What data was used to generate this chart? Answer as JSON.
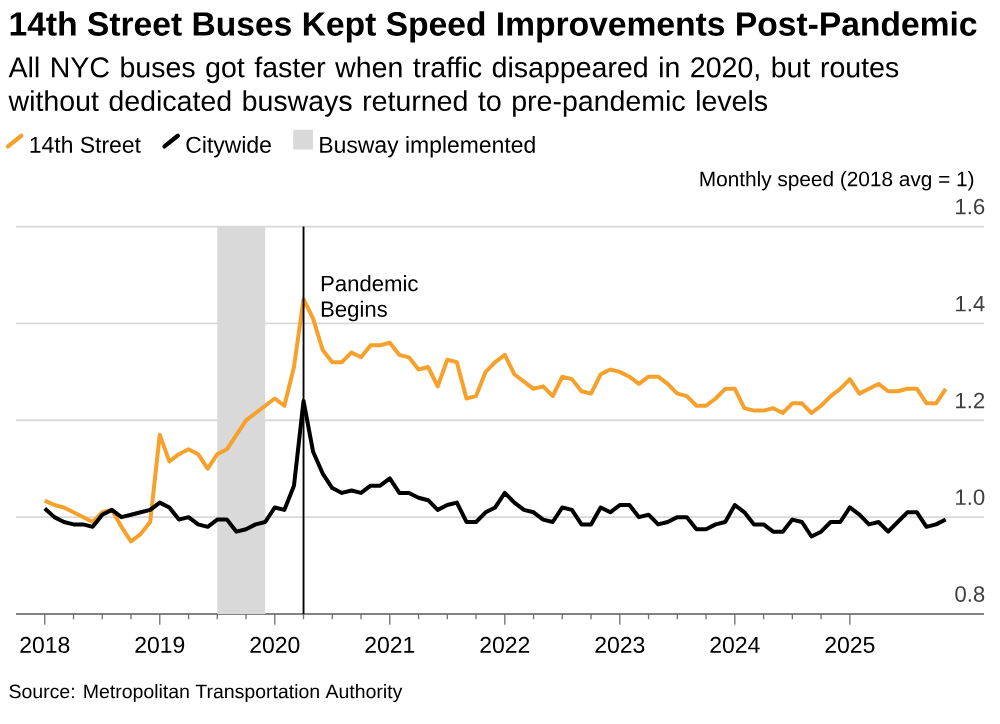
{
  "chart_data": {
    "type": "line",
    "title": "14th Street Buses Kept Speed Improvements Post-Pandemic",
    "subtitle": "All NYC buses got faster when traffic disappeared in 2020, but routes without dedicated busways returned to pre-pandemic levels",
    "ylabel": "Monthly speed (2018 avg = 1)",
    "annotations": [
      "Source: Metropolitan Transportation Authority"
    ],
    "x": [
      "2018-01",
      "2018-02",
      "2018-03",
      "2018-04",
      "2018-05",
      "2018-06",
      "2018-07",
      "2018-08",
      "2018-09",
      "2018-10",
      "2018-11",
      "2018-12",
      "2019-01",
      "2019-02",
      "2019-03",
      "2019-04",
      "2019-05",
      "2019-06",
      "2019-07",
      "2019-08",
      "2019-09",
      "2019-10",
      "2019-11",
      "2019-12",
      "2020-01",
      "2020-02",
      "2020-03",
      "2020-04",
      "2020-05",
      "2020-06",
      "2020-07",
      "2020-08",
      "2020-09",
      "2020-10",
      "2020-11",
      "2020-12",
      "2021-01",
      "2021-02",
      "2021-03",
      "2021-04",
      "2021-05",
      "2021-06",
      "2021-07",
      "2021-08",
      "2021-09",
      "2021-10",
      "2021-11",
      "2021-12",
      "2022-01",
      "2022-02",
      "2022-03",
      "2022-04",
      "2022-05",
      "2022-06",
      "2022-07",
      "2022-08",
      "2022-09",
      "2022-10",
      "2022-11",
      "2022-12",
      "2023-01",
      "2023-02",
      "2023-03",
      "2023-04",
      "2023-05",
      "2023-06",
      "2023-07",
      "2023-08",
      "2023-09",
      "2023-10",
      "2023-11",
      "2023-12",
      "2024-01",
      "2024-02",
      "2024-03",
      "2024-04",
      "2024-05",
      "2024-06",
      "2024-07",
      "2024-08",
      "2024-09",
      "2024-10",
      "2024-11",
      "2024-12",
      "2025-01",
      "2025-02",
      "2025-03",
      "2025-04",
      "2025-05",
      "2025-06",
      "2025-07",
      "2025-08",
      "2025-09",
      "2025-10",
      "2025-11"
    ],
    "series": [
      {
        "name": "14th Street",
        "color": "#f5a12c",
        "values": [
          1.034,
          1.025,
          1.02,
          1.01,
          1.0,
          0.99,
          1.01,
          1.015,
          0.98,
          0.95,
          0.965,
          0.99,
          1.17,
          1.115,
          1.13,
          1.14,
          1.13,
          1.1,
          1.13,
          1.14,
          1.17,
          1.2,
          1.215,
          1.23,
          1.245,
          1.23,
          1.31,
          1.45,
          1.41,
          1.345,
          1.32,
          1.32,
          1.34,
          1.33,
          1.355,
          1.355,
          1.36,
          1.335,
          1.33,
          1.305,
          1.31,
          1.27,
          1.325,
          1.32,
          1.245,
          1.25,
          1.3,
          1.32,
          1.335,
          1.295,
          1.28,
          1.265,
          1.27,
          1.25,
          1.29,
          1.285,
          1.26,
          1.255,
          1.295,
          1.305,
          1.3,
          1.29,
          1.275,
          1.29,
          1.29,
          1.275,
          1.255,
          1.25,
          1.23,
          1.23,
          1.245,
          1.265,
          1.265,
          1.225,
          1.22,
          1.22,
          1.225,
          1.215,
          1.235,
          1.235,
          1.215,
          1.23,
          1.25,
          1.265,
          1.285,
          1.255,
          1.265,
          1.275,
          1.26,
          1.26,
          1.265,
          1.265,
          1.235,
          1.235,
          1.265
        ]
      },
      {
        "name": "Citywide",
        "color": "#000000",
        "values": [
          1.018,
          1.0,
          0.99,
          0.985,
          0.985,
          0.98,
          1.005,
          1.015,
          1.0,
          1.005,
          1.01,
          1.015,
          1.03,
          1.02,
          0.995,
          1.0,
          0.985,
          0.98,
          0.995,
          0.995,
          0.97,
          0.975,
          0.985,
          0.99,
          1.02,
          1.015,
          1.065,
          1.24,
          1.135,
          1.09,
          1.06,
          1.05,
          1.055,
          1.05,
          1.065,
          1.065,
          1.08,
          1.05,
          1.05,
          1.04,
          1.035,
          1.015,
          1.025,
          1.03,
          0.99,
          0.99,
          1.01,
          1.02,
          1.05,
          1.03,
          1.015,
          1.01,
          0.995,
          0.99,
          1.02,
          1.015,
          0.985,
          0.985,
          1.02,
          1.01,
          1.025,
          1.025,
          1.0,
          1.005,
          0.985,
          0.99,
          1.0,
          1.0,
          0.975,
          0.975,
          0.985,
          0.99,
          1.025,
          1.01,
          0.985,
          0.985,
          0.97,
          0.97,
          0.995,
          0.99,
          0.96,
          0.97,
          0.99,
          0.99,
          1.02,
          1.005,
          0.985,
          0.99,
          0.97,
          0.99,
          1.01,
          1.01,
          0.98,
          0.985,
          0.995
        ]
      }
    ],
    "xlim": [
      "2017-10",
      "2026-03"
    ],
    "xticks": [
      "2018",
      "2019",
      "2020",
      "2021",
      "2022",
      "2023",
      "2024",
      "2025"
    ],
    "ylim": [
      0.8,
      1.6
    ],
    "yticks": [
      0.8,
      {
        "value": 1.0,
        "label": "1.0"
      },
      1.2,
      1.4,
      1.6
    ],
    "bands": [
      {
        "axis": "x",
        "from": "2019-07",
        "to": "2019-12",
        "label": "Busway implemented",
        "color": "#d9d9d9"
      }
    ],
    "ref_lines": [
      {
        "axis": "x",
        "value": "2020-04",
        "label": "Pandemic Begins",
        "color": "#000000"
      }
    ],
    "grid": "y",
    "legend": "top left",
    "line_style": "solid",
    "marker": "none"
  }
}
